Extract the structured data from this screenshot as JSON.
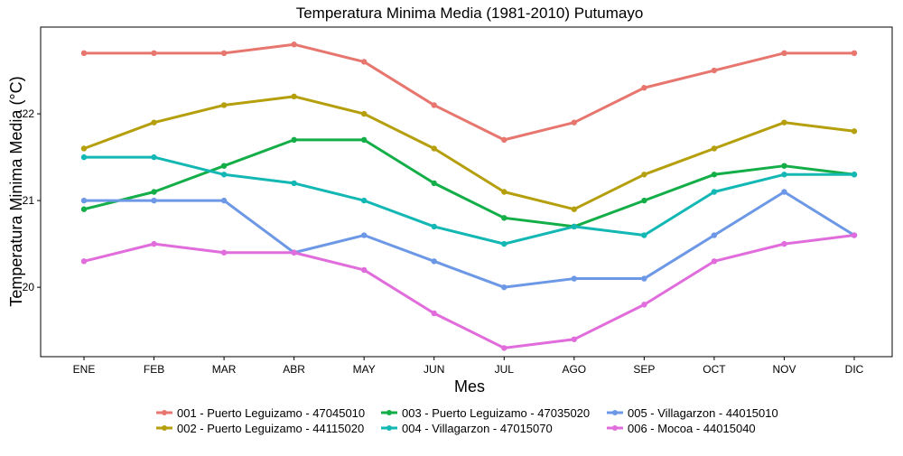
{
  "chart_data": {
    "type": "line",
    "title": "Temperatura Minima Media (1981-2010)  Putumayo",
    "xlabel": "Mes",
    "ylabel": "Temperatura Minima Media  (°C)",
    "categories": [
      "ENE",
      "FEB",
      "MAR",
      "ABR",
      "MAY",
      "JUN",
      "JUL",
      "AGO",
      "SEP",
      "OCT",
      "NOV",
      "DIC"
    ],
    "yticks": [
      20,
      21,
      22
    ],
    "ylim": [
      19.2,
      23.0
    ],
    "grid": false,
    "legend_position": "bottom",
    "series": [
      {
        "name": "001 - Puerto Leguizamo - 47045010",
        "color": "#E7766F",
        "values": [
          22.7,
          22.7,
          22.7,
          22.8,
          22.6,
          22.1,
          21.7,
          21.9,
          22.3,
          22.5,
          22.7,
          22.7
        ]
      },
      {
        "name": "002 - Puerto Leguizamo - 44115020",
        "color": "#B59F0C",
        "values": [
          21.6,
          21.9,
          22.1,
          22.2,
          22.0,
          21.6,
          21.1,
          20.9,
          21.3,
          21.6,
          21.9,
          21.8
        ]
      },
      {
        "name": "003 - Puerto Leguizamo - 47035020",
        "color": "#14AE48",
        "values": [
          20.9,
          21.1,
          21.4,
          21.7,
          21.7,
          21.2,
          20.8,
          20.7,
          21.0,
          21.3,
          21.4,
          21.3
        ]
      },
      {
        "name": "004 - Villagarzon - 47015070",
        "color": "#13B7B4",
        "values": [
          21.5,
          21.5,
          21.3,
          21.2,
          21.0,
          20.7,
          20.5,
          20.7,
          20.6,
          21.1,
          21.3,
          21.3
        ]
      },
      {
        "name": "005 - Villagarzon - 44015010",
        "color": "#6D98E6",
        "values": [
          21.0,
          21.0,
          21.0,
          20.4,
          20.6,
          20.3,
          20.0,
          20.1,
          20.1,
          20.6,
          21.1,
          20.6
        ]
      },
      {
        "name": "006 - Mocoa - 44015040",
        "color": "#E16CDC",
        "values": [
          20.3,
          20.5,
          20.4,
          20.4,
          20.2,
          19.7,
          19.3,
          19.4,
          19.8,
          20.3,
          20.5,
          20.6
        ]
      }
    ]
  }
}
